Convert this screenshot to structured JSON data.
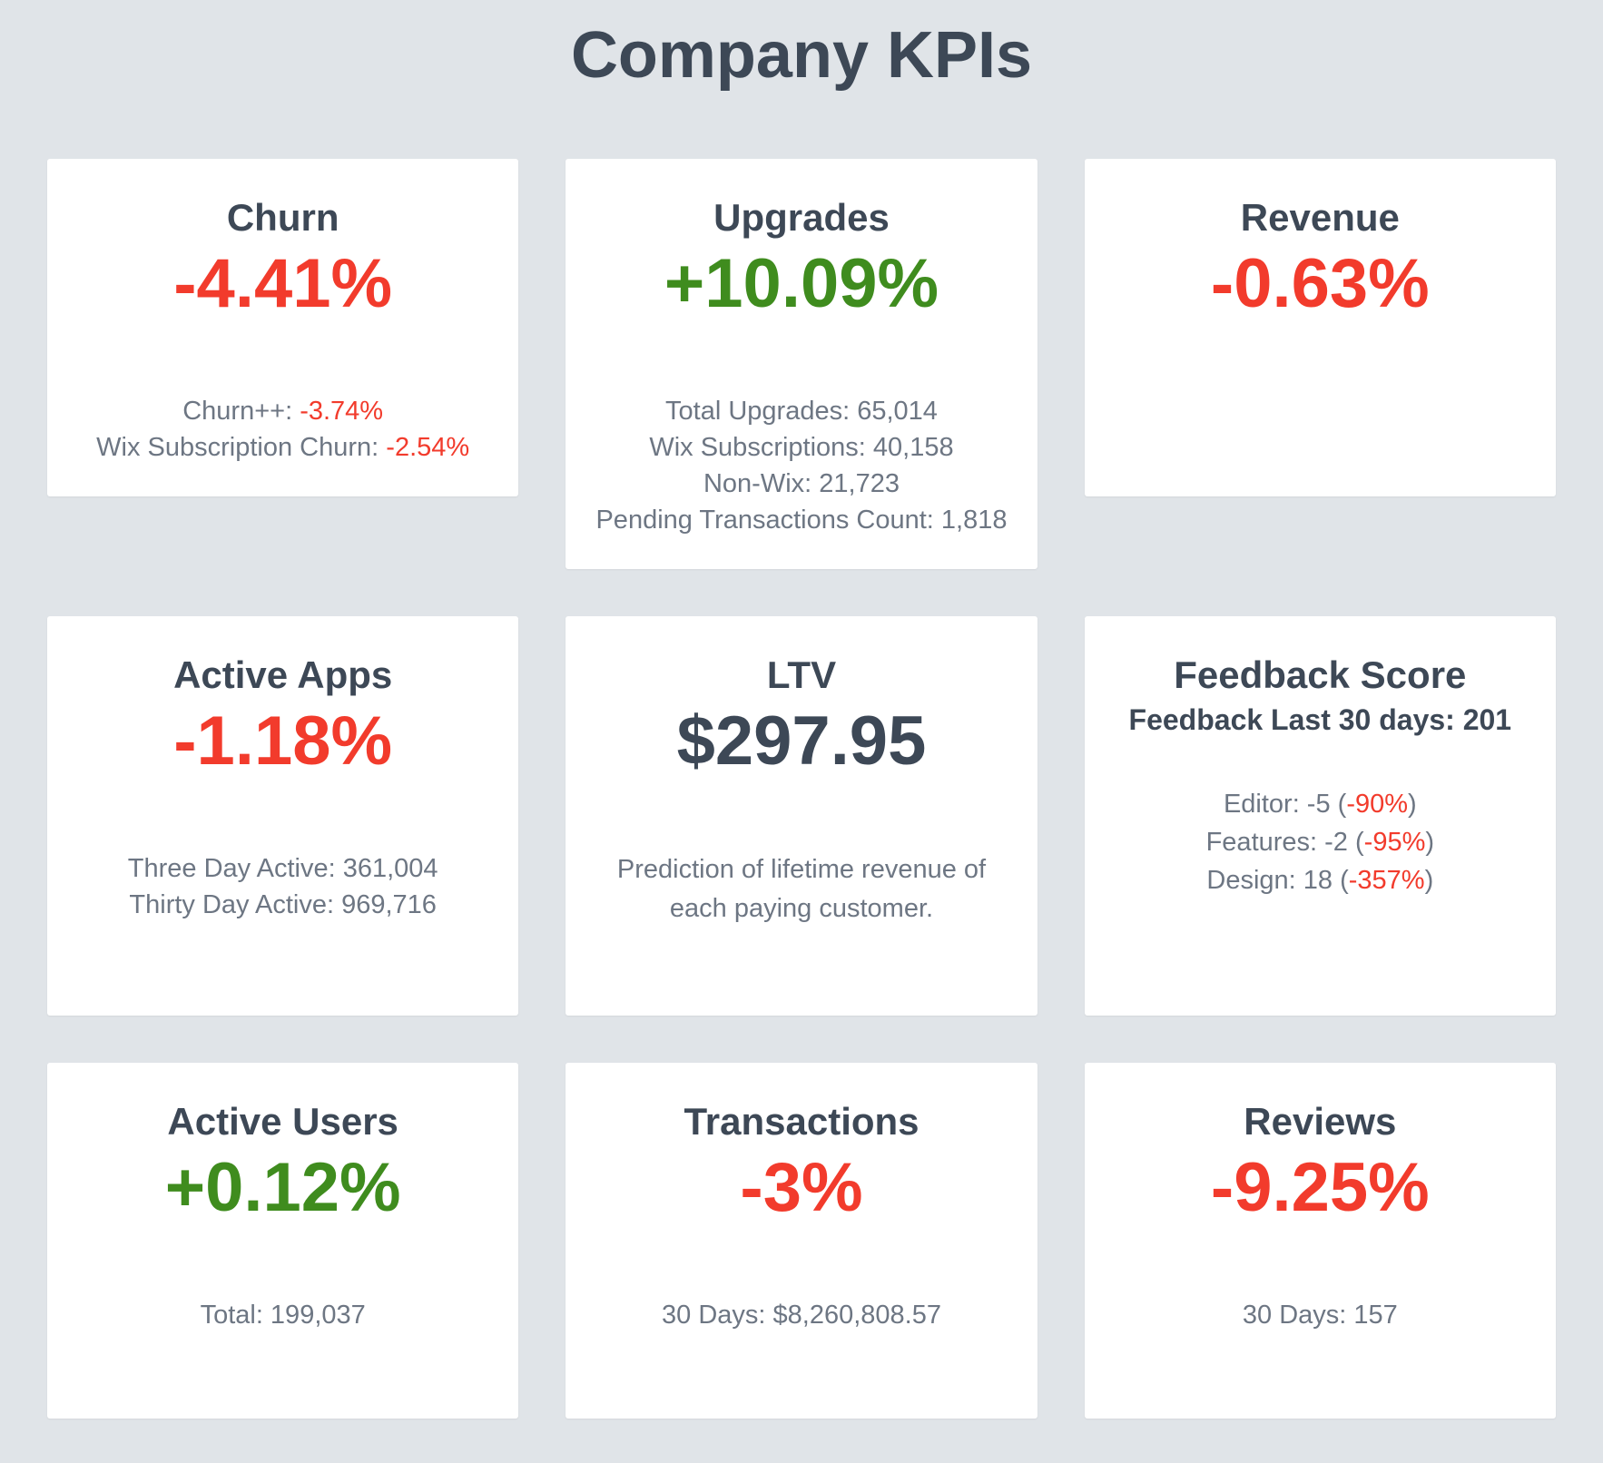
{
  "page_title": "Company KPIs",
  "colors": {
    "background": "#e0e4e8",
    "card_background": "#ffffff",
    "heading": "#3d4856",
    "muted_text": "#6d7683",
    "positive": "#3f8c1e",
    "negative": "#f23b2c"
  },
  "cards": [
    {
      "title": "Churn",
      "value": "-4.41%",
      "trend": "negative",
      "details": [
        {
          "pre": "Churn++: ",
          "accent": "-3.74%",
          "post": ""
        },
        {
          "pre": "Wix Subscription Churn: ",
          "accent": "-2.54%",
          "post": ""
        }
      ]
    },
    {
      "title": "Upgrades",
      "value": "+10.09%",
      "trend": "positive",
      "details": [
        {
          "text": "Total Upgrades: 65,014"
        },
        {
          "text": "Wix Subscriptions: 40,158"
        },
        {
          "text": "Non-Wix: 21,723"
        },
        {
          "text": "Pending Transactions Count: 1,818"
        }
      ]
    },
    {
      "title": "Revenue",
      "value": "-0.63%",
      "trend": "negative",
      "details": []
    },
    {
      "title": "Active Apps",
      "value": "-1.18%",
      "trend": "negative",
      "details": [
        {
          "text": "Three Day Active: 361,004"
        },
        {
          "text": "Thirty Day Active: 969,716"
        }
      ]
    },
    {
      "title": "LTV",
      "value": "$297.95",
      "trend": "neutral",
      "description": "Prediction of lifetime revenue of each paying customer."
    },
    {
      "title": "Feedback Score",
      "subtitle": "Feedback Last 30 days: 201",
      "details": [
        {
          "pre": "Editor: -5 (",
          "accent": "-90%",
          "post": ")"
        },
        {
          "pre": "Features: -2 (",
          "accent": "-95%",
          "post": ")"
        },
        {
          "pre": "Design: 18 (",
          "accent": "-357%",
          "post": ")"
        }
      ]
    },
    {
      "title": "Active Users",
      "value": "+0.12%",
      "trend": "positive",
      "details": [
        {
          "text": "Total: 199,037"
        }
      ]
    },
    {
      "title": "Transactions",
      "value": "-3%",
      "trend": "negative",
      "details": [
        {
          "text": "30 Days: $8,260,808.57"
        }
      ]
    },
    {
      "title": "Reviews",
      "value": "-9.25%",
      "trend": "negative",
      "details": [
        {
          "text": "30 Days: 157"
        }
      ]
    }
  ]
}
